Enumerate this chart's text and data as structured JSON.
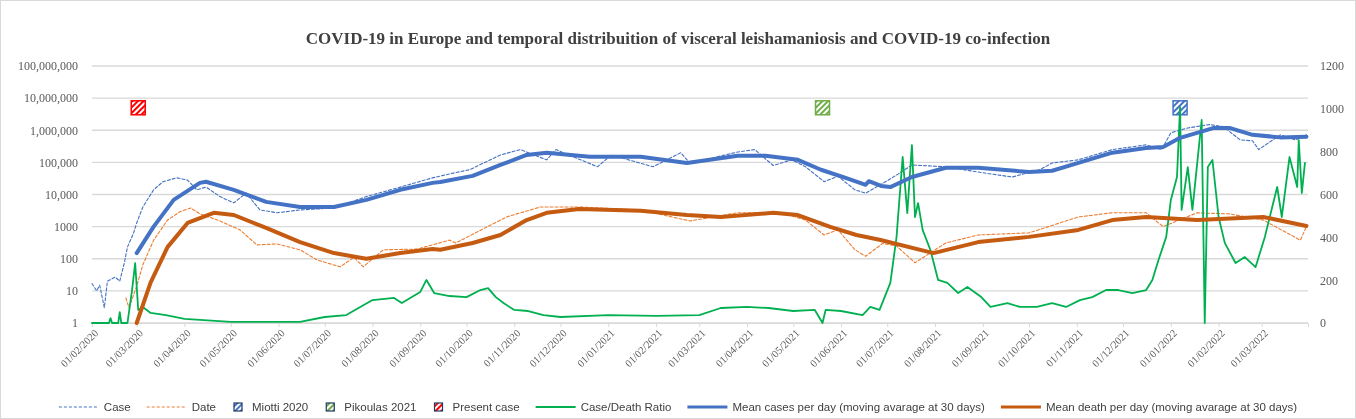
{
  "chart_data": {
    "type": "line",
    "title": "COVID-19 in Europe and temporal distribuition of visceral leishamaniosis and COVID-19 co-infection",
    "xlim": [
      "2020-02-01",
      "2022-03-31"
    ],
    "xticks": [
      {
        "value": "2020-02-01",
        "label": "01/02/2020"
      },
      {
        "value": "2020-03-01",
        "label": "01/03/2020"
      },
      {
        "value": "2020-04-01",
        "label": "01/04/2020"
      },
      {
        "value": "2020-05-01",
        "label": "01/05/2020"
      },
      {
        "value": "2020-06-01",
        "label": "01/06/2020"
      },
      {
        "value": "2020-07-01",
        "label": "01/07/2020"
      },
      {
        "value": "2020-08-01",
        "label": "01/08/2020"
      },
      {
        "value": "2020-09-01",
        "label": "01/09/2020"
      },
      {
        "value": "2020-10-01",
        "label": "01/10/2020"
      },
      {
        "value": "2020-11-01",
        "label": "01/11/2020"
      },
      {
        "value": "2020-12-01",
        "label": "01/12/2020"
      },
      {
        "value": "2021-01-01",
        "label": "01/01/2021"
      },
      {
        "value": "2021-02-01",
        "label": "01/02/2021"
      },
      {
        "value": "2021-03-01",
        "label": "01/03/2021"
      },
      {
        "value": "2021-04-01",
        "label": "01/04/2021"
      },
      {
        "value": "2021-05-01",
        "label": "01/05/2021"
      },
      {
        "value": "2021-06-01",
        "label": "01/06/2021"
      },
      {
        "value": "2021-07-01",
        "label": "01/07/2021"
      },
      {
        "value": "2021-08-01",
        "label": "01/08/2021"
      },
      {
        "value": "2021-09-01",
        "label": "01/09/2021"
      },
      {
        "value": "2021-10-01",
        "label": "01/10/2021"
      },
      {
        "value": "2021-11-01",
        "label": "01/11/2021"
      },
      {
        "value": "2021-12-01",
        "label": "01/12/2021"
      },
      {
        "value": "2022-01-01",
        "label": "01/01/2022"
      },
      {
        "value": "2022-02-01",
        "label": "01/02/2022"
      },
      {
        "value": "2022-03-01",
        "label": "01/03/2022"
      }
    ],
    "log": "y",
    "ylim": [
      1,
      100000000
    ],
    "yticks": [
      1,
      10,
      100,
      1000,
      {
        "value": 10000,
        "label": "10,000"
      },
      {
        "value": 100000,
        "label": "100,000"
      },
      {
        "value": 1000000,
        "label": "1,000,000"
      },
      {
        "value": 10000000,
        "label": "10,000,000"
      },
      {
        "value": 100000000,
        "label": "100,000,000"
      }
    ],
    "y2lim": [
      0,
      1200
    ],
    "y2ticks": [
      0,
      200,
      400,
      600,
      800,
      1000,
      1200
    ],
    "grid": "y",
    "legend": "bottom",
    "series": [
      {
        "name": "Case",
        "color": "#4472c4",
        "line_style": "dashed",
        "x": [
          "2020-02-01",
          "2020-02-04",
          "2020-02-06",
          "2020-02-09",
          "2020-02-11",
          "2020-02-16",
          "2020-02-19",
          "2020-02-22",
          "2020-02-24",
          "2020-02-28",
          "2020-03-01",
          "2020-03-05",
          "2020-03-12",
          "2020-03-18",
          "2020-03-27",
          "2020-04-03",
          "2020-04-09",
          "2020-04-15",
          "2020-04-24",
          "2020-05-03",
          "2020-05-11",
          "2020-05-20",
          "2020-05-31",
          "2020-06-15",
          "2020-07-07",
          "2020-07-28",
          "2020-08-19",
          "2020-09-09",
          "2020-09-23",
          "2020-10-03",
          "2020-10-23",
          "2020-11-05",
          "2020-11-22",
          "2020-11-28",
          "2020-12-25",
          "2021-01-03",
          "2021-01-30",
          "2021-02-17",
          "2021-02-23",
          "2021-03-26",
          "2021-04-06",
          "2021-04-18",
          "2021-04-30",
          "2021-05-09",
          "2021-05-21",
          "2021-05-30",
          "2021-06-10",
          "2021-06-17",
          "2021-06-28",
          "2021-07-08",
          "2021-07-17",
          "2021-08-08",
          "2021-08-29",
          "2021-09-20",
          "2021-10-08",
          "2021-10-16",
          "2021-11-02",
          "2021-11-24",
          "2021-12-16",
          "2021-12-26",
          "2022-01-01",
          "2022-01-12",
          "2022-01-26",
          "2022-02-04",
          "2022-02-15",
          "2022-02-23",
          "2022-02-27",
          "2022-03-13",
          "2022-03-23",
          "2022-03-30"
        ],
        "values": [
          17,
          10,
          15,
          3,
          20,
          27,
          20,
          75,
          230,
          640,
          1300,
          4100,
          14000,
          25000,
          33000,
          28000,
          14000,
          17000,
          8600,
          5500,
          11000,
          3300,
          2700,
          3300,
          3800,
          8600,
          17000,
          33000,
          47000,
          59000,
          170000,
          250000,
          120000,
          250000,
          73000,
          170000,
          73000,
          200000,
          95000,
          210000,
          250000,
          80000,
          120000,
          73000,
          25000,
          37000,
          14000,
          11000,
          22000,
          43000,
          83000,
          73000,
          50000,
          35000,
          59000,
          96000,
          120000,
          250000,
          350000,
          250000,
          830000,
          1180000,
          1500000,
          1300000,
          500000,
          470000,
          250000,
          720000,
          500000,
          720000
        ]
      },
      {
        "name": "Date",
        "color": "#ed7d31",
        "line_style": "dashed",
        "x": [
          "2020-02-23",
          "2020-02-25",
          "2020-03-01",
          "2020-03-05",
          "2020-03-12",
          "2020-03-21",
          "2020-03-29",
          "2020-04-05",
          "2020-04-11",
          "2020-04-24",
          "2020-05-07",
          "2020-05-18",
          "2020-05-31",
          "2020-06-15",
          "2020-06-26",
          "2020-07-11",
          "2020-07-20",
          "2020-07-26",
          "2020-08-08",
          "2020-08-30",
          "2020-09-20",
          "2020-09-24",
          "2020-10-27",
          "2020-11-18",
          "2020-12-13",
          "2021-01-22",
          "2021-02-23",
          "2021-03-26",
          "2021-04-23",
          "2021-05-09",
          "2021-05-21",
          "2021-05-30",
          "2021-06-10",
          "2021-06-17",
          "2021-06-28",
          "2021-07-07",
          "2021-07-19",
          "2021-08-08",
          "2021-08-29",
          "2021-10-01",
          "2021-11-02",
          "2021-11-24",
          "2021-12-16",
          "2021-12-27",
          "2022-01-18",
          "2022-02-08",
          "2022-03-02",
          "2022-03-26",
          "2022-03-30"
        ],
        "values": [
          6,
          3,
          14,
          65,
          380,
          1600,
          2900,
          3800,
          2500,
          1500,
          790,
          270,
          290,
          190,
          92,
          56,
          110,
          56,
          190,
          200,
          380,
          310,
          2000,
          4100,
          4100,
          3300,
          1500,
          2700,
          2700,
          1600,
          550,
          800,
          190,
          120,
          300,
          250,
          75,
          310,
          550,
          640,
          2000,
          2700,
          2700,
          1000,
          2700,
          2500,
          1600,
          380,
          1000
        ]
      },
      {
        "name": "Miotti 2020",
        "type": "scatter",
        "marker": "square",
        "color": "#4472c4",
        "x": [
          "2022-01-07"
        ],
        "values": [
          5000000
        ]
      },
      {
        "name": "Pikoulas 2021",
        "type": "scatter",
        "marker": "square",
        "color": "#70ad47",
        "x": [
          "2021-05-20"
        ],
        "values": [
          5000000
        ]
      },
      {
        "name": "Present case",
        "type": "scatter",
        "marker": "square",
        "color": "#ff0000",
        "x": [
          "2020-03-02"
        ],
        "values": [
          5000000
        ]
      },
      {
        "name": "Case/Death Ratio",
        "axis": "y2",
        "color": "#00b050",
        "line_style": "solid",
        "x": [
          "2020-02-01",
          "2020-02-12",
          "2020-02-13",
          "2020-02-14",
          "2020-02-18",
          "2020-02-19",
          "2020-02-20",
          "2020-02-24",
          "2020-02-27",
          "2020-02-29",
          "2020-03-02",
          "2020-03-05",
          "2020-03-10",
          "2020-03-20",
          "2020-04-01",
          "2020-05-01",
          "2020-06-01",
          "2020-06-15",
          "2020-07-01",
          "2020-07-15",
          "2020-08-01",
          "2020-08-15",
          "2020-08-20",
          "2020-09-01",
          "2020-09-05",
          "2020-09-10",
          "2020-09-20",
          "2020-10-01",
          "2020-10-10",
          "2020-10-15",
          "2020-10-20",
          "2020-10-25",
          "2020-11-01",
          "2020-11-10",
          "2020-11-20",
          "2020-12-01",
          "2021-01-01",
          "2021-02-01",
          "2021-03-01",
          "2021-03-15",
          "2021-04-01",
          "2021-04-15",
          "2021-05-01",
          "2021-05-15",
          "2021-05-20",
          "2021-05-22",
          "2021-06-01",
          "2021-06-15",
          "2021-06-20",
          "2021-06-26",
          "2021-07-03",
          "2021-07-07",
          "2021-07-11",
          "2021-07-14",
          "2021-07-17",
          "2021-07-19",
          "2021-07-21",
          "2021-07-24",
          "2021-07-29",
          "2021-08-03",
          "2021-08-09",
          "2021-08-16",
          "2021-08-22",
          "2021-08-31",
          "2021-09-06",
          "2021-09-17",
          "2021-09-25",
          "2021-10-06",
          "2021-10-16",
          "2021-10-25",
          "2021-11-03",
          "2021-11-11",
          "2021-11-20",
          "2021-11-28",
          "2021-12-07",
          "2021-12-16",
          "2021-12-20",
          "2021-12-24",
          "2021-12-29",
          "2022-01-01",
          "2022-01-05",
          "2022-01-07",
          "2022-01-08",
          "2022-01-12",
          "2022-01-15",
          "2022-01-21",
          "2022-01-23",
          "2022-01-25",
          "2022-01-28",
          "2022-02-01",
          "2022-02-05",
          "2022-02-12",
          "2022-02-18",
          "2022-02-25",
          "2022-03-03",
          "2022-03-11",
          "2022-03-14",
          "2022-03-19",
          "2022-03-24",
          "2022-03-25",
          "2022-03-27",
          "2022-03-29"
        ],
        "values": [
          0,
          0,
          23,
          0,
          0,
          51,
          0,
          0,
          154,
          280,
          61,
          75,
          47,
          37,
          19,
          5,
          5,
          5,
          28,
          37,
          107,
          117,
          93,
          145,
          201,
          140,
          126,
          121,
          154,
          163,
          121,
          93,
          61,
          56,
          37,
          28,
          37,
          33,
          37,
          70,
          75,
          70,
          56,
          61,
          0,
          61,
          56,
          37,
          75,
          61,
          187,
          400,
          775,
          513,
          831,
          495,
          560,
          434,
          341,
          201,
          187,
          140,
          168,
          121,
          75,
          93,
          75,
          75,
          93,
          75,
          107,
          121,
          154,
          154,
          140,
          154,
          201,
          294,
          402,
          574,
          682,
          1008,
          528,
          728,
          528,
          948,
          0,
          728,
          761,
          495,
          374,
          280,
          308,
          261,
          402,
          635,
          495,
          775,
          635,
          854,
          607,
          747
        ]
      },
      {
        "name": "Mean cases per day (moving avarage at 30 days)",
        "color": "#4472c4",
        "line_style": "solid",
        "x": [
          "2020-03-01",
          "2020-03-12",
          "2020-03-25",
          "2020-04-11",
          "2020-04-15",
          "2020-05-03",
          "2020-05-24",
          "2020-06-15",
          "2020-07-07",
          "2020-07-28",
          "2020-08-19",
          "2020-09-09",
          "2020-09-14",
          "2020-10-05",
          "2020-10-23",
          "2020-11-09",
          "2020-11-22",
          "2020-12-20",
          "2021-01-22",
          "2021-02-21",
          "2021-03-26",
          "2021-04-13",
          "2021-05-04",
          "2021-05-19",
          "2021-06-04",
          "2021-06-17",
          "2021-06-19",
          "2021-06-27",
          "2021-07-03",
          "2021-07-17",
          "2021-08-08",
          "2021-08-29",
          "2021-10-01",
          "2021-10-16",
          "2021-11-02",
          "2021-11-24",
          "2021-12-16",
          "2021-12-27",
          "2022-01-07",
          "2022-01-29",
          "2022-02-08",
          "2022-02-23",
          "2022-03-13",
          "2022-03-30"
        ],
        "values": [
          150,
          1000,
          6800,
          23000,
          25000,
          14000,
          5900,
          4100,
          4100,
          6800,
          14000,
          23000,
          24500,
          38000,
          83000,
          170000,
          200000,
          150000,
          150000,
          96000,
          160000,
          160000,
          120000,
          59000,
          33000,
          20000,
          26000,
          18500,
          17000,
          35000,
          68000,
          68000,
          50000,
          55000,
          96000,
          200000,
          280000,
          300000,
          580000,
          1180000,
          1180000,
          720000,
          600000,
          630000
        ]
      },
      {
        "name": "Mean death per day (moving avarage at 30 days)",
        "color": "#c55a11",
        "line_style": "solid",
        "x": [
          "2020-03-01",
          "2020-03-10",
          "2020-03-21",
          "2020-04-03",
          "2020-04-20",
          "2020-05-03",
          "2020-05-24",
          "2020-06-15",
          "2020-07-07",
          "2020-07-28",
          "2020-08-19",
          "2020-09-09",
          "2020-09-14",
          "2020-10-05",
          "2020-10-23",
          "2020-11-09",
          "2020-11-22",
          "2020-12-13",
          "2021-01-22",
          "2021-02-21",
          "2021-03-15",
          "2021-04-18",
          "2021-05-04",
          "2021-05-25",
          "2021-06-11",
          "2021-06-26",
          "2021-07-31",
          "2021-08-29",
          "2021-10-01",
          "2021-11-02",
          "2021-11-24",
          "2021-12-16",
          "2022-01-18",
          "2022-03-02",
          "2022-03-30"
        ],
        "values": [
          1,
          18,
          230,
          1300,
          2700,
          2300,
          910,
          330,
          150,
          100,
          150,
          200,
          190,
          310,
          550,
          1600,
          2700,
          3550,
          3100,
          2300,
          2000,
          2700,
          2300,
          980,
          550,
          390,
          150,
          330,
          480,
          790,
          1600,
          2000,
          1600,
          2000,
          1050
        ]
      }
    ]
  }
}
